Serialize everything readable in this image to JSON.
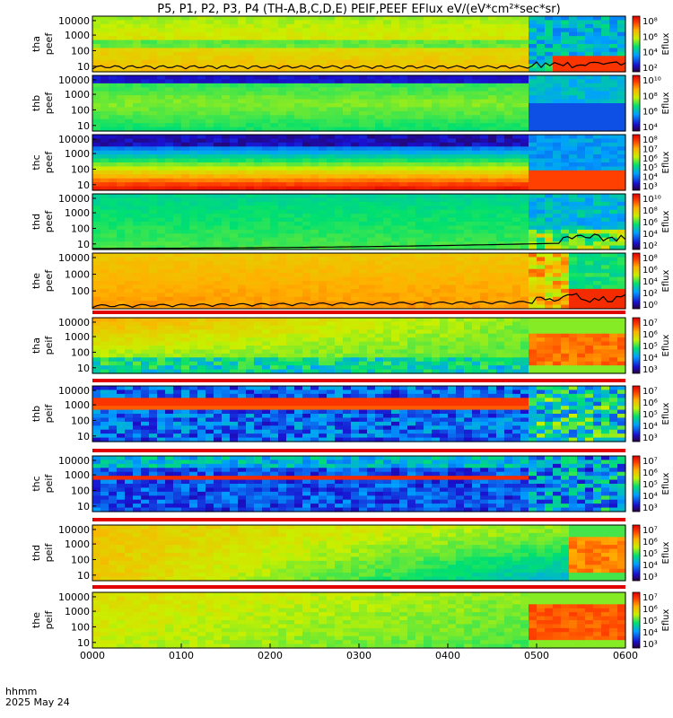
{
  "chart_data": {
    "type": "heatmap",
    "title": "P5, P1, P2, P3, P4 (TH-A,B,C,D,E) PEIF,PEEF EFlux eV/(eV*cm²*sec*sr)",
    "x_ticks": [
      "0000",
      "0100",
      "0200",
      "0300",
      "0400",
      "0500",
      "0600"
    ],
    "x_label_1": "hhmm",
    "x_label_2": "2025 May 24",
    "colorbar_label": "Eflux",
    "panels": [
      {
        "name": "tha peef",
        "line1": "tha",
        "line2": "peef",
        "y_ticks": [
          "10000",
          "1000",
          "100",
          "10"
        ],
        "cb_ticks": [
          "10⁸",
          "10⁶",
          "10⁴",
          "10²"
        ],
        "scheme": "e_a"
      },
      {
        "name": "thb peef",
        "line1": "thb",
        "line2": "peef",
        "y_ticks": [
          "10000",
          "1000",
          "100",
          "10"
        ],
        "cb_ticks": [
          "10¹⁰",
          "10⁸",
          "10⁶",
          "10⁴"
        ],
        "scheme": "e_b"
      },
      {
        "name": "thc peef",
        "line1": "thc",
        "line2": "peef",
        "y_ticks": [
          "10000",
          "1000",
          "100",
          "10"
        ],
        "cb_ticks": [
          "10⁸",
          "10⁷",
          "10⁶",
          "10⁵",
          "10⁴",
          "10³"
        ],
        "scheme": "e_c"
      },
      {
        "name": "thd peef",
        "line1": "thd",
        "line2": "peef",
        "y_ticks": [
          "10000",
          "1000",
          "100",
          "10"
        ],
        "cb_ticks": [
          "10¹⁰",
          "10⁸",
          "10⁶",
          "10⁴",
          "10²"
        ],
        "scheme": "e_d"
      },
      {
        "name": "the peef",
        "line1": "the",
        "line2": "peef",
        "y_ticks": [
          "10000",
          "1000",
          "100"
        ],
        "cb_ticks": [
          "10⁸",
          "10⁶",
          "10⁴",
          "10²",
          "10⁰"
        ],
        "scheme": "e_e"
      },
      {
        "name": "tha peif",
        "line1": "tha",
        "line2": "peif",
        "y_ticks": [
          "10000",
          "1000",
          "100",
          "10"
        ],
        "cb_ticks": [
          "10⁷",
          "10⁶",
          "10⁵",
          "10⁴",
          "10³"
        ],
        "scheme": "i_a"
      },
      {
        "name": "thb peif",
        "line1": "thb",
        "line2": "peif",
        "y_ticks": [
          "10000",
          "1000",
          "100",
          "10"
        ],
        "cb_ticks": [
          "10⁷",
          "10⁶",
          "10⁵",
          "10⁴",
          "10³"
        ],
        "scheme": "i_b"
      },
      {
        "name": "thc peif",
        "line1": "thc",
        "line2": "peif",
        "y_ticks": [
          "10000",
          "1000",
          "100",
          "10"
        ],
        "cb_ticks": [
          "10⁷",
          "10⁶",
          "10⁵",
          "10⁴",
          "10³"
        ],
        "scheme": "i_c"
      },
      {
        "name": "thd peif",
        "line1": "thd",
        "line2": "peif",
        "y_ticks": [
          "10000",
          "1000",
          "100",
          "10"
        ],
        "cb_ticks": [
          "10⁷",
          "10⁶",
          "10⁵",
          "10⁴",
          "10³"
        ],
        "scheme": "i_d"
      },
      {
        "name": "the peif",
        "line1": "the",
        "line2": "peif",
        "y_ticks": [
          "10000",
          "1000",
          "100",
          "10"
        ],
        "cb_ticks": [
          "10⁷",
          "10⁶",
          "10⁵",
          "10⁴",
          "10³"
        ],
        "scheme": "i_e"
      }
    ],
    "x_range_hours": [
      0,
      6
    ],
    "y_scale": "log",
    "colormap": "rainbow"
  }
}
